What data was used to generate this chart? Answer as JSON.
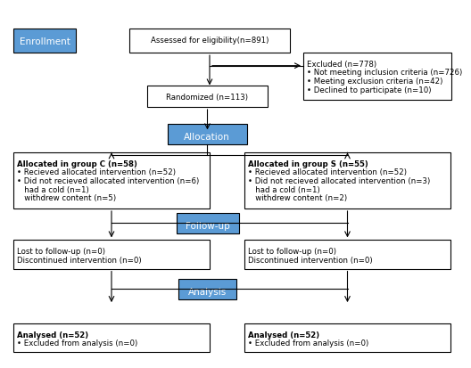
{
  "bg_color": "#ffffff",
  "box_edge_color": "#000000",
  "blue_fill": "#5b9bd5",
  "blue_text": "#ffffff",
  "white_fill": "#ffffff",
  "font_size": 6.2,
  "label_font_size": 7.5,
  "enrollment_label": "Enrollment",
  "allocation_label": "Allocation",
  "followup_label": "Follow-up",
  "analysis_label": "Analysis",
  "eligibility_text": "Assessed for eligibility(n=891)",
  "excluded_title": "Excluded (n=778)",
  "excluded_lines": [
    "• Not meeting inclusion criteria (n=726)",
    "• Meeting exclusion criteria (n=42)",
    "• Declined to participate (n=10)"
  ],
  "randomized_text": "Randomized (n=113)",
  "group_c_title": "Allocated in group C (n=58)",
  "group_c_lines": [
    "• Recieved allocated intervention (n=52)",
    "• Did not recieved allocated intervention (n=6)",
    "   had a cold (n=1)",
    "   withdrew content (n=5)"
  ],
  "group_s_title": "Allocated in group S (n=55)",
  "group_s_lines": [
    "• Recieved allocated intervention (n=52)",
    "• Did not recieved allocated intervention (n=3)",
    "   had a cold (n=1)",
    "   withdrew content (n=2)"
  ],
  "followup_c_lines": [
    "Lost to follow-up (n=0)",
    "Discontinued intervention (n=0)"
  ],
  "followup_s_lines": [
    "Lost to follow-up (n=0)",
    "Discontinued intervention (n=0)"
  ],
  "analysis_c_title": "Analysed (n=52)",
  "analysis_c_lines": [
    "• Excluded from analysis (n=0)"
  ],
  "analysis_s_title": "Analysed (n=52)",
  "analysis_s_lines": [
    "• Excluded from analysis (n=0)"
  ]
}
